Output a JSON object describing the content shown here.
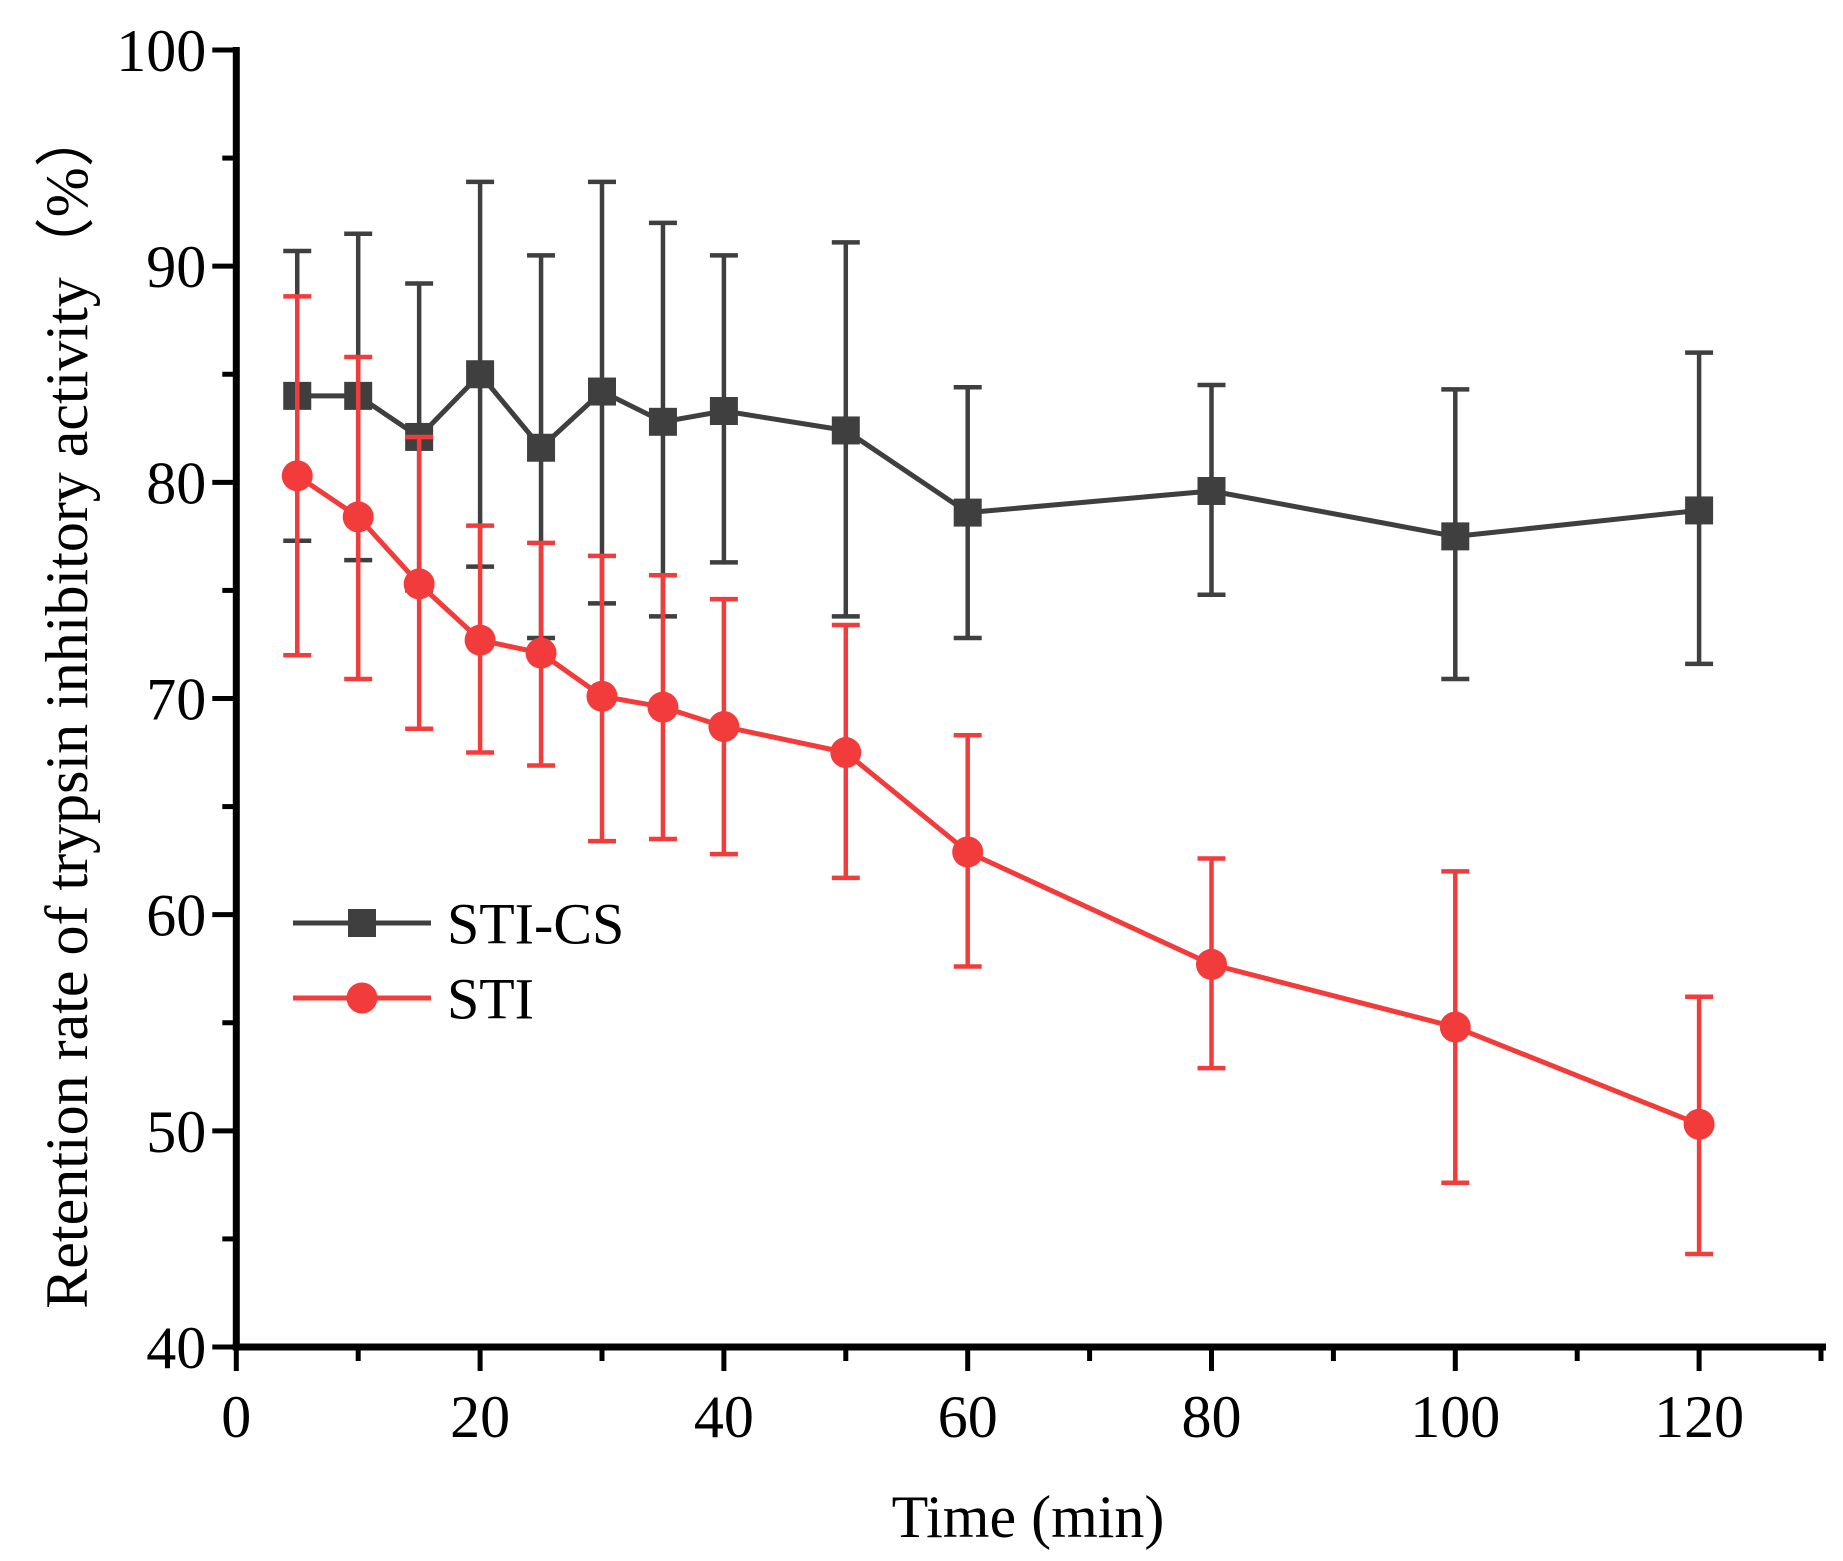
{
  "chart_data": {
    "type": "line",
    "title": "",
    "xlabel": "Time (min)",
    "ylabel": "Retention rate of trypsin inhibitory activity（%）",
    "xlim": [
      0,
      130
    ],
    "ylim": [
      40,
      100
    ],
    "xticks": [
      0,
      20,
      40,
      60,
      80,
      100,
      120
    ],
    "xtick_labels": [
      "0",
      "20",
      "40",
      "60",
      "80",
      "100",
      "120"
    ],
    "xminor_step": 10,
    "yticks": [
      40,
      50,
      60,
      70,
      80,
      90,
      100
    ],
    "ytick_labels": [
      "40",
      "50",
      "60",
      "70",
      "80",
      "90",
      "100"
    ],
    "yminor_step": 5,
    "grid": false,
    "legend": "middle-left",
    "x": [
      5,
      10,
      15,
      20,
      25,
      30,
      35,
      40,
      50,
      60,
      80,
      100,
      120
    ],
    "series": [
      {
        "name": "STI-CS",
        "color": "#3f3f3f",
        "marker": "square",
        "values": [
          84.0,
          84.0,
          82.1,
          85.0,
          81.6,
          84.2,
          82.8,
          83.3,
          82.4,
          78.6,
          79.6,
          77.5,
          78.7
        ],
        "err_high": [
          90.7,
          91.5,
          89.2,
          93.9,
          90.5,
          93.9,
          92.0,
          90.5,
          91.1,
          84.4,
          84.5,
          84.3,
          86.0
        ],
        "err_low": [
          77.3,
          76.4,
          75.0,
          76.1,
          72.8,
          74.4,
          73.8,
          76.3,
          73.8,
          72.8,
          74.8,
          70.9,
          71.6
        ]
      },
      {
        "name": "STI",
        "color": "#f23c3c",
        "marker": "circle",
        "values": [
          80.3,
          78.4,
          75.3,
          72.7,
          72.1,
          70.1,
          69.6,
          68.7,
          67.5,
          62.9,
          57.7,
          54.8,
          50.3
        ],
        "err_high": [
          88.6,
          85.8,
          82.1,
          78.0,
          77.2,
          76.6,
          75.7,
          74.6,
          73.4,
          68.3,
          62.6,
          62.0,
          56.2
        ],
        "err_low": [
          72.0,
          70.9,
          68.6,
          67.5,
          66.9,
          63.4,
          63.5,
          62.8,
          61.7,
          57.6,
          52.9,
          47.6,
          44.3
        ]
      }
    ]
  }
}
